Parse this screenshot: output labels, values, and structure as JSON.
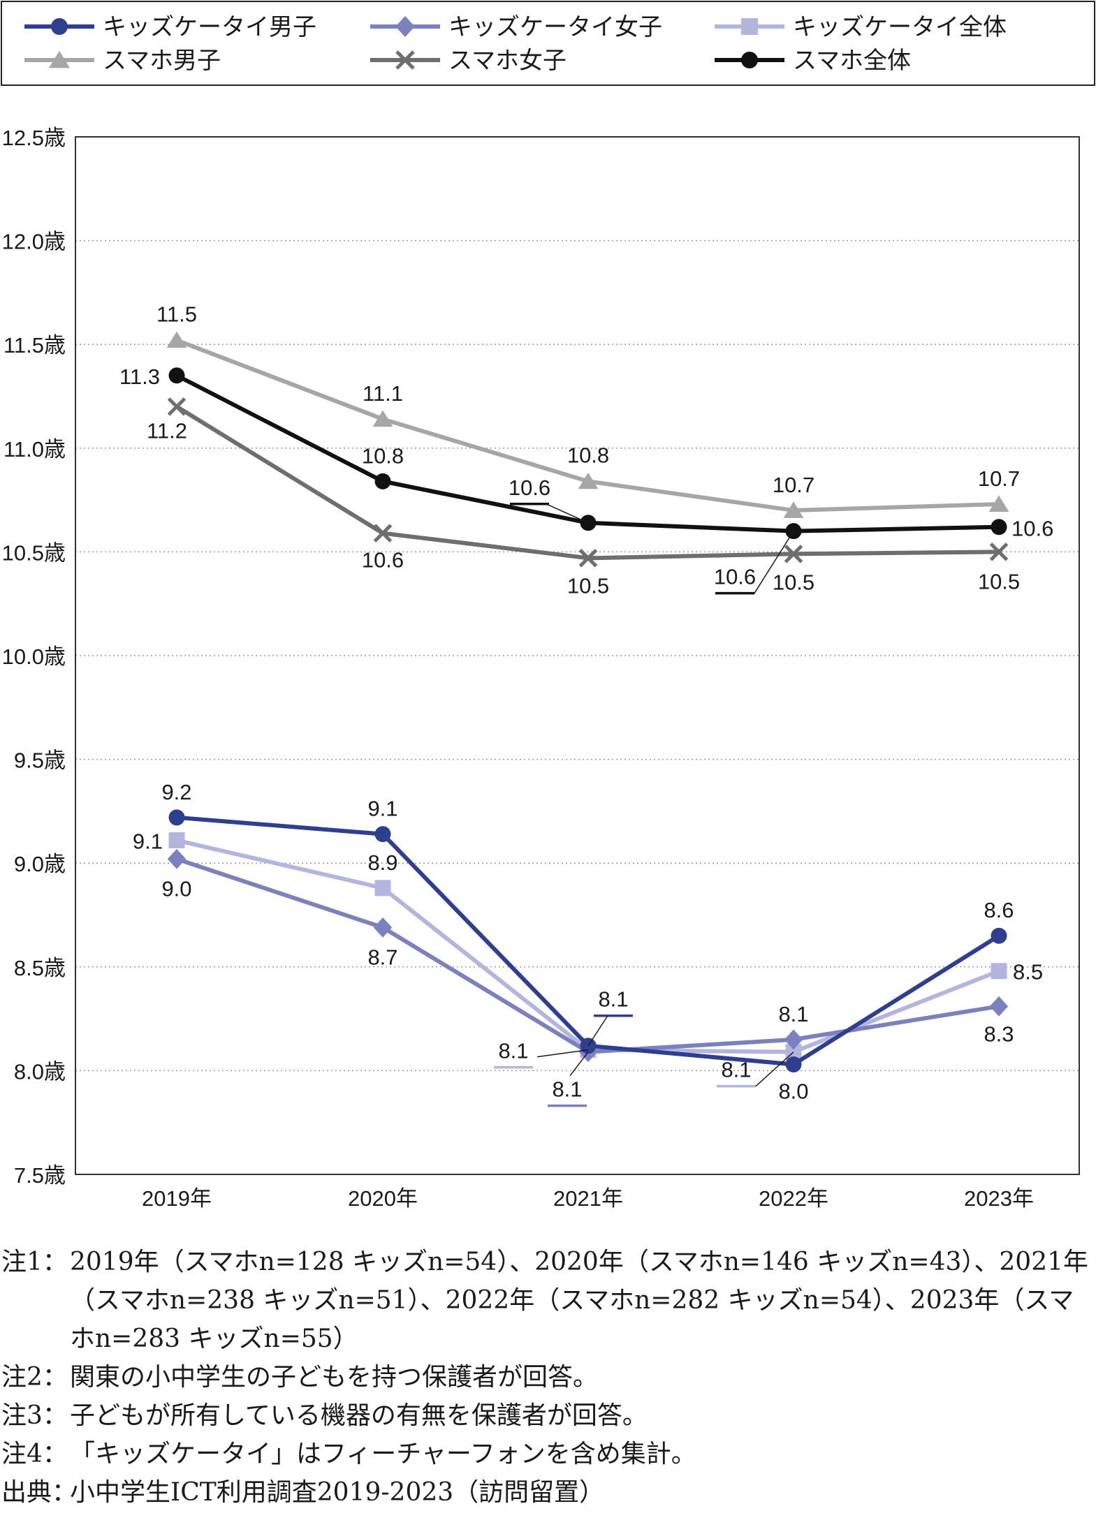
{
  "chart_data": {
    "type": "line",
    "categories": [
      "2019年",
      "2020年",
      "2021年",
      "2022年",
      "2023年"
    ],
    "y_ticks": [
      "12.5歳",
      "12.0歳",
      "11.5歳",
      "11.0歳",
      "10.5歳",
      "10.0歳",
      "9.5歳",
      "9.0歳",
      "8.5歳",
      "8.0歳",
      "7.5歳"
    ],
    "ylim": [
      7.5,
      12.5
    ],
    "grid": true,
    "legend_position": "top",
    "series": [
      {
        "name": "キッズケータイ男子",
        "color": "#2e3f8f",
        "marker": "circle",
        "values": [
          9.22,
          9.14,
          8.12,
          8.03,
          8.65
        ],
        "labels": [
          "9.2",
          "9.1",
          "8.1",
          "8.0",
          "8.6"
        ]
      },
      {
        "name": "キッズケータイ女子",
        "color": "#7b80be",
        "marker": "diamond",
        "values": [
          9.02,
          8.69,
          8.09,
          8.15,
          8.31
        ],
        "labels": [
          "9.0",
          "8.7",
          "8.1",
          "8.1",
          "8.3"
        ]
      },
      {
        "name": "キッズケータイ全体",
        "color": "#b3b5de",
        "marker": "square",
        "values": [
          9.11,
          8.88,
          8.1,
          8.09,
          8.48
        ],
        "labels": [
          "9.1",
          "8.9",
          "8.1",
          "8.1",
          "8.5"
        ]
      },
      {
        "name": "スマホ男子",
        "color": "#a6a6a6",
        "marker": "triangle",
        "values": [
          11.52,
          11.14,
          10.84,
          10.7,
          10.73
        ],
        "labels": [
          "11.5",
          "11.1",
          "10.8",
          "10.7",
          "10.7"
        ]
      },
      {
        "name": "スマホ女子",
        "color": "#6e6e6e",
        "marker": "x",
        "values": [
          11.2,
          10.59,
          10.47,
          10.49,
          10.5
        ],
        "labels": [
          "11.2",
          "10.6",
          "10.5",
          "10.5",
          "10.5"
        ]
      },
      {
        "name": "スマホ全体",
        "color": "#111111",
        "marker": "circle",
        "values": [
          11.35,
          10.84,
          10.64,
          10.6,
          10.62
        ],
        "labels": [
          "11.3",
          "10.8",
          "10.6",
          "10.6",
          "10.6"
        ]
      }
    ]
  },
  "notes": [
    {
      "prefix": "注1：",
      "text": "2019年（スマホn=128 キッズn=54）、2020年（スマホn=146 キッズn=43）、2021年（スマホn=238 キッズn=51）、2022年（スマホn=282 キッズn=54）、2023年（スマホn=283 キッズn=55）"
    },
    {
      "prefix": "注2：",
      "text": "関東の小中学生の子どもを持つ保護者が回答。"
    },
    {
      "prefix": "注3：",
      "text": "子どもが所有している機器の有無を保護者が回答。"
    },
    {
      "prefix": "注4：",
      "text": "「キッズケータイ」はフィーチャーフォンを含め集計。"
    },
    {
      "prefix": "出典：",
      "text": "小中学生ICT利用調査2019-2023（訪問留置）"
    }
  ]
}
